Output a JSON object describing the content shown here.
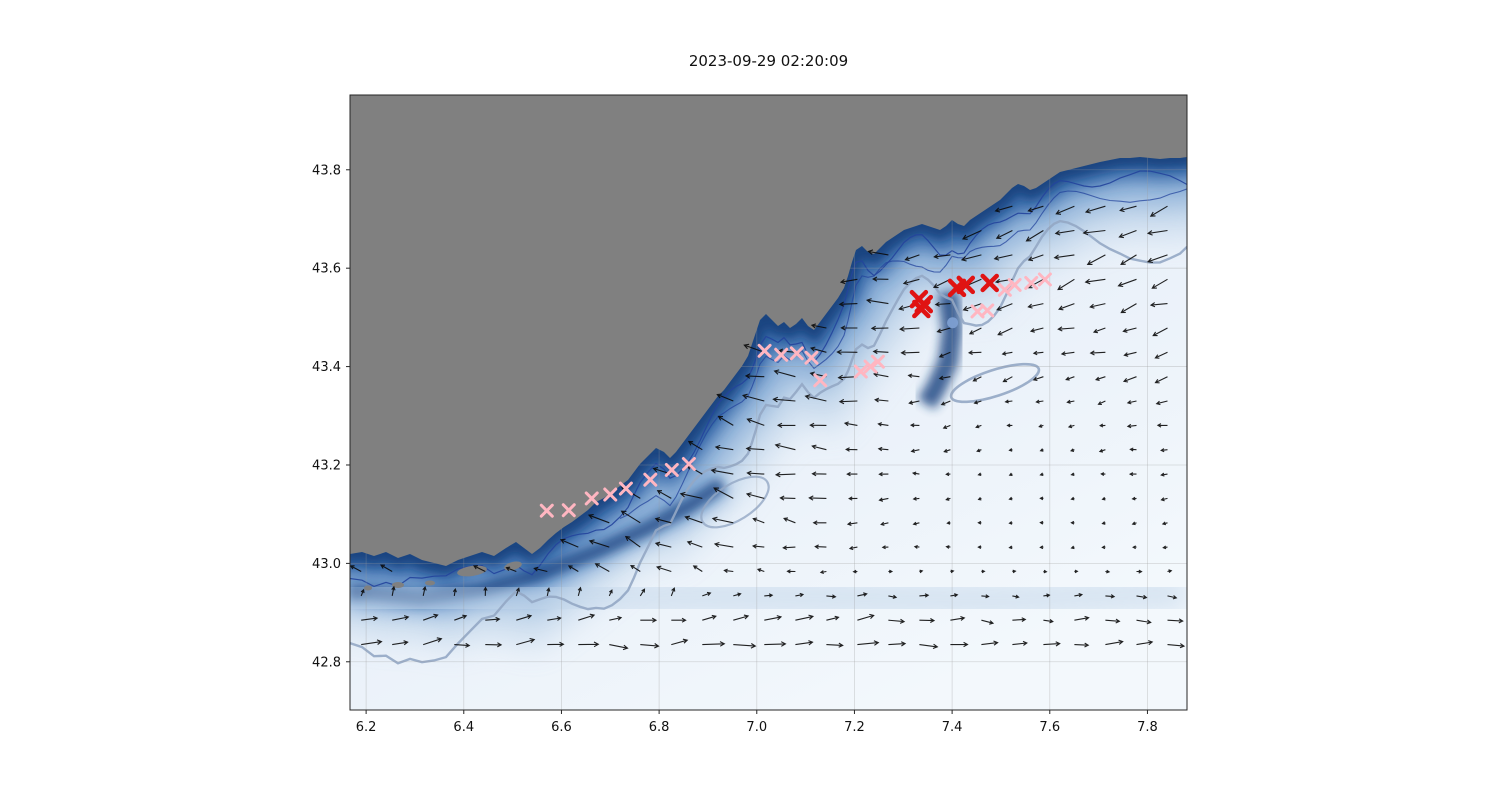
{
  "title": "2023-09-29 02:20:09",
  "figure": {
    "background": "#ffffff",
    "land_color": "#808080",
    "sea_light": "#eef4fb",
    "coast_deep_blue": "#143f7c",
    "contour_navy": "#24449c",
    "contour_slate": "#93a7c4",
    "arrow_color": "#0a0a0a"
  },
  "chart_data": {
    "type": "scatter",
    "subtype": "geographic map with quiver current field, bathymetry shading and marker tracks",
    "title": "2023-09-29 02:20:09",
    "xlabel": "",
    "ylabel": "",
    "xlim": [
      6.167,
      7.881
    ],
    "ylim": [
      42.702,
      43.952
    ],
    "xticks": [
      6.2,
      6.4,
      6.6,
      6.8,
      7.0,
      7.2,
      7.4,
      7.6,
      7.8
    ],
    "yticks": [
      42.8,
      43.0,
      43.2,
      43.4,
      43.6,
      43.8
    ],
    "grid": true,
    "legend": "none",
    "series": [
      {
        "name": "pink-crosses",
        "marker": "x",
        "color": "#ffb6c1",
        "points": [
          [
            6.57,
            43.107
          ],
          [
            6.615,
            43.108
          ],
          [
            6.662,
            43.132
          ],
          [
            6.7,
            43.14
          ],
          [
            6.732,
            43.152
          ],
          [
            6.782,
            43.17
          ],
          [
            6.826,
            43.19
          ],
          [
            6.861,
            43.202
          ],
          [
            7.016,
            43.432
          ],
          [
            7.05,
            43.424
          ],
          [
            7.082,
            43.427
          ],
          [
            7.112,
            43.418
          ],
          [
            7.13,
            43.372
          ],
          [
            7.213,
            43.39
          ],
          [
            7.233,
            43.4
          ],
          [
            7.248,
            43.41
          ],
          [
            7.452,
            43.512
          ],
          [
            7.472,
            43.514
          ],
          [
            7.508,
            43.556
          ],
          [
            7.528,
            43.566
          ],
          [
            7.562,
            43.57
          ],
          [
            7.59,
            43.577
          ]
        ]
      },
      {
        "name": "red-crosses",
        "marker": "X",
        "color": "#e01313",
        "points": [
          [
            7.332,
            43.537
          ],
          [
            7.342,
            43.527
          ],
          [
            7.337,
            43.517
          ],
          [
            7.41,
            43.56
          ],
          [
            7.428,
            43.566
          ],
          [
            7.477,
            43.57
          ]
        ]
      },
      {
        "name": "blue-dot",
        "marker": "o",
        "color": "#7d9fd1",
        "points": [
          [
            7.401,
            43.489
          ]
        ]
      }
    ],
    "quiver": {
      "color": "#000000",
      "description": "surface current vectors: westward/southwestward coastal jet along the shelf, eastward return flow in the south, weak circulation centre offshore"
    }
  }
}
